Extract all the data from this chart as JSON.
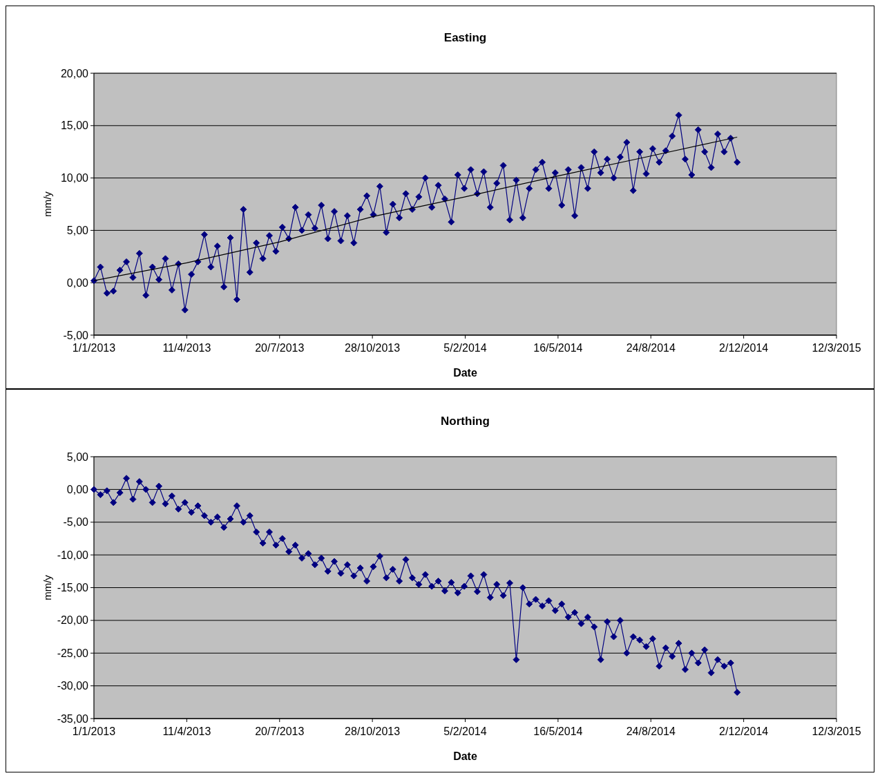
{
  "chart_data": [
    {
      "type": "line",
      "title": "Easting",
      "xlabel": "Date",
      "ylabel": "mm/y",
      "grid": "y",
      "marker": "diamond",
      "xlim": [
        "2013-01-01",
        "2015-03-12"
      ],
      "ylim": [
        -5,
        20
      ],
      "xticks": [
        {
          "value": "2013-01-01",
          "label": "1/1/2013"
        },
        {
          "value": "2013-04-11",
          "label": "11/4/2013"
        },
        {
          "value": "2013-07-20",
          "label": "20/7/2013"
        },
        {
          "value": "2013-10-28",
          "label": "28/10/2013"
        },
        {
          "value": "2014-02-05",
          "label": "5/2/2014"
        },
        {
          "value": "2014-05-16",
          "label": "16/5/2014"
        },
        {
          "value": "2014-08-24",
          "label": "24/8/2014"
        },
        {
          "value": "2014-12-02",
          "label": "2/12/2014"
        },
        {
          "value": "2015-03-12",
          "label": "12/3/2015"
        }
      ],
      "yticks": [
        {
          "value": -5,
          "label": "-5,00"
        },
        {
          "value": 0,
          "label": "0,00"
        },
        {
          "value": 5,
          "label": "5,00"
        },
        {
          "value": 10,
          "label": "10,00"
        },
        {
          "value": 15,
          "label": "15,00"
        },
        {
          "value": 20,
          "label": "20,00"
        }
      ],
      "x": [
        "2013-01-01",
        "2013-01-08",
        "2013-01-15",
        "2013-01-22",
        "2013-01-29",
        "2013-02-05",
        "2013-02-12",
        "2013-02-19",
        "2013-02-26",
        "2013-03-05",
        "2013-03-12",
        "2013-03-19",
        "2013-03-26",
        "2013-04-02",
        "2013-04-09",
        "2013-04-16",
        "2013-04-23",
        "2013-04-30",
        "2013-05-07",
        "2013-05-14",
        "2013-05-21",
        "2013-05-28",
        "2013-06-04",
        "2013-06-11",
        "2013-06-18",
        "2013-06-25",
        "2013-07-02",
        "2013-07-09",
        "2013-07-16",
        "2013-07-23",
        "2013-07-30",
        "2013-08-06",
        "2013-08-13",
        "2013-08-20",
        "2013-08-27",
        "2013-09-03",
        "2013-09-10",
        "2013-09-17",
        "2013-09-24",
        "2013-10-01",
        "2013-10-08",
        "2013-10-15",
        "2013-10-22",
        "2013-10-29",
        "2013-11-05",
        "2013-11-12",
        "2013-11-19",
        "2013-11-26",
        "2013-12-03",
        "2013-12-10",
        "2013-12-17",
        "2013-12-24",
        "2013-12-31",
        "2014-01-07",
        "2014-01-14",
        "2014-01-21",
        "2014-01-28",
        "2014-02-04",
        "2014-02-11",
        "2014-02-18",
        "2014-02-25",
        "2014-03-04",
        "2014-03-11",
        "2014-03-18",
        "2014-03-25",
        "2014-04-01",
        "2014-04-08",
        "2014-04-15",
        "2014-04-22",
        "2014-04-29",
        "2014-05-06",
        "2014-05-13",
        "2014-05-20",
        "2014-05-27",
        "2014-06-03",
        "2014-06-10",
        "2014-06-17",
        "2014-06-24",
        "2014-07-01",
        "2014-07-08",
        "2014-07-15",
        "2014-07-22",
        "2014-07-29",
        "2014-08-05",
        "2014-08-12",
        "2014-08-19",
        "2014-08-26",
        "2014-09-02",
        "2014-09-09",
        "2014-09-16",
        "2014-09-23",
        "2014-09-30",
        "2014-10-07",
        "2014-10-14",
        "2014-10-21",
        "2014-10-28",
        "2014-11-04",
        "2014-11-11",
        "2014-11-18",
        "2014-11-25"
      ],
      "series": [
        {
          "color": "#000080",
          "values": [
            0.2,
            1.5,
            -1.0,
            -0.8,
            1.2,
            2.0,
            0.5,
            2.8,
            -1.2,
            1.5,
            0.3,
            2.3,
            -0.7,
            1.8,
            -2.6,
            0.8,
            2.0,
            4.6,
            1.5,
            3.5,
            -0.4,
            4.3,
            -1.6,
            7.0,
            1.0,
            3.8,
            2.3,
            4.5,
            3.0,
            5.3,
            4.2,
            7.2,
            5.0,
            6.5,
            5.2,
            7.4,
            4.2,
            6.8,
            4.0,
            6.4,
            3.8,
            7.0,
            8.3,
            6.5,
            9.2,
            4.8,
            7.5,
            6.2,
            8.5,
            7.0,
            8.2,
            10.0,
            7.2,
            9.3,
            8.0,
            5.8,
            10.3,
            9.0,
            10.8,
            8.5,
            10.6,
            7.2,
            9.5,
            11.2,
            6.0,
            9.8,
            6.2,
            9.0,
            10.8,
            11.5,
            9.0,
            10.5,
            7.4,
            10.8,
            6.4,
            11.0,
            9.0,
            12.5,
            10.5,
            11.8,
            10.0,
            12.0,
            13.4,
            8.8,
            12.5,
            10.4,
            12.8,
            11.5,
            12.6,
            14.0,
            16.0,
            11.8,
            10.3,
            14.6,
            12.5,
            11.0,
            14.2,
            12.5,
            13.8,
            11.5
          ]
        },
        {
          "type": "line",
          "marker": "none",
          "color": "#000000",
          "x": [
            "2013-01-01",
            "2013-04-11",
            "2013-07-20",
            "2013-10-28",
            "2014-02-05",
            "2014-05-16",
            "2014-08-24",
            "2014-11-25"
          ],
          "values": [
            0.2,
            1.9,
            3.9,
            6.3,
            8.2,
            10.2,
            12.1,
            13.9
          ]
        }
      ]
    },
    {
      "type": "line",
      "title": "Northing",
      "xlabel": "Date",
      "ylabel": "mm/y",
      "grid": "y",
      "marker": "diamond",
      "xlim": [
        "2013-01-01",
        "2015-03-12"
      ],
      "ylim": [
        -35,
        5
      ],
      "xticks": [
        {
          "value": "2013-01-01",
          "label": "1/1/2013"
        },
        {
          "value": "2013-04-11",
          "label": "11/4/2013"
        },
        {
          "value": "2013-07-20",
          "label": "20/7/2013"
        },
        {
          "value": "2013-10-28",
          "label": "28/10/2013"
        },
        {
          "value": "2014-02-05",
          "label": "5/2/2014"
        },
        {
          "value": "2014-05-16",
          "label": "16/5/2014"
        },
        {
          "value": "2014-08-24",
          "label": "24/8/2014"
        },
        {
          "value": "2014-12-02",
          "label": "2/12/2014"
        },
        {
          "value": "2015-03-12",
          "label": "12/3/2015"
        }
      ],
      "yticks": [
        {
          "value": -35,
          "label": "-35,00"
        },
        {
          "value": -30,
          "label": "-30,00"
        },
        {
          "value": -25,
          "label": "-25,00"
        },
        {
          "value": -20,
          "label": "-20,00"
        },
        {
          "value": -15,
          "label": "-15,00"
        },
        {
          "value": -10,
          "label": "-10,00"
        },
        {
          "value": -5,
          "label": "-5,00"
        },
        {
          "value": 0,
          "label": "0,00"
        },
        {
          "value": 5,
          "label": "5,00"
        }
      ],
      "x": [
        "2013-01-01",
        "2013-01-08",
        "2013-01-15",
        "2013-01-22",
        "2013-01-29",
        "2013-02-05",
        "2013-02-12",
        "2013-02-19",
        "2013-02-26",
        "2013-03-05",
        "2013-03-12",
        "2013-03-19",
        "2013-03-26",
        "2013-04-02",
        "2013-04-09",
        "2013-04-16",
        "2013-04-23",
        "2013-04-30",
        "2013-05-07",
        "2013-05-14",
        "2013-05-21",
        "2013-05-28",
        "2013-06-04",
        "2013-06-11",
        "2013-06-18",
        "2013-06-25",
        "2013-07-02",
        "2013-07-09",
        "2013-07-16",
        "2013-07-23",
        "2013-07-30",
        "2013-08-06",
        "2013-08-13",
        "2013-08-20",
        "2013-08-27",
        "2013-09-03",
        "2013-09-10",
        "2013-09-17",
        "2013-09-24",
        "2013-10-01",
        "2013-10-08",
        "2013-10-15",
        "2013-10-22",
        "2013-10-29",
        "2013-11-05",
        "2013-11-12",
        "2013-11-19",
        "2013-11-26",
        "2013-12-03",
        "2013-12-10",
        "2013-12-17",
        "2013-12-24",
        "2013-12-31",
        "2014-01-07",
        "2014-01-14",
        "2014-01-21",
        "2014-01-28",
        "2014-02-04",
        "2014-02-11",
        "2014-02-18",
        "2014-02-25",
        "2014-03-04",
        "2014-03-11",
        "2014-03-18",
        "2014-03-25",
        "2014-04-01",
        "2014-04-08",
        "2014-04-15",
        "2014-04-22",
        "2014-04-29",
        "2014-05-06",
        "2014-05-13",
        "2014-05-20",
        "2014-05-27",
        "2014-06-03",
        "2014-06-10",
        "2014-06-17",
        "2014-06-24",
        "2014-07-01",
        "2014-07-08",
        "2014-07-15",
        "2014-07-22",
        "2014-07-29",
        "2014-08-05",
        "2014-08-12",
        "2014-08-19",
        "2014-08-26",
        "2014-09-02",
        "2014-09-09",
        "2014-09-16",
        "2014-09-23",
        "2014-09-30",
        "2014-10-07",
        "2014-10-14",
        "2014-10-21",
        "2014-10-28",
        "2014-11-04",
        "2014-11-11",
        "2014-11-18",
        "2014-11-25"
      ],
      "series": [
        {
          "color": "#000080",
          "values": [
            0.0,
            -0.8,
            -0.2,
            -2.0,
            -0.5,
            1.7,
            -1.5,
            1.2,
            0.0,
            -2.0,
            0.5,
            -2.2,
            -1.0,
            -3.0,
            -2.0,
            -3.5,
            -2.5,
            -4.0,
            -5.0,
            -4.2,
            -5.8,
            -4.5,
            -2.5,
            -5.0,
            -4.0,
            -6.5,
            -8.2,
            -6.5,
            -8.5,
            -7.5,
            -9.5,
            -8.5,
            -10.5,
            -9.8,
            -11.5,
            -10.5,
            -12.5,
            -11.0,
            -12.8,
            -11.5,
            -13.2,
            -12.0,
            -14.0,
            -11.8,
            -10.2,
            -13.5,
            -12.2,
            -14.0,
            -10.7,
            -13.5,
            -14.5,
            -13.0,
            -14.8,
            -14.0,
            -15.5,
            -14.2,
            -15.8,
            -14.8,
            -13.2,
            -15.6,
            -13.0,
            -16.5,
            -14.5,
            -16.2,
            -14.3,
            -26.0,
            -15.0,
            -17.5,
            -16.8,
            -17.8,
            -17.0,
            -18.5,
            -17.5,
            -19.5,
            -18.8,
            -20.5,
            -19.5,
            -21.0,
            -26.0,
            -20.2,
            -22.5,
            -20.0,
            -25.0,
            -22.5,
            -23.0,
            -24.0,
            -22.8,
            -27.0,
            -24.2,
            -25.5,
            -23.5,
            -27.5,
            -25.0,
            -26.5,
            -24.5,
            -28.0,
            -26.0,
            -27.0,
            -26.5,
            -31.0
          ]
        }
      ]
    }
  ]
}
